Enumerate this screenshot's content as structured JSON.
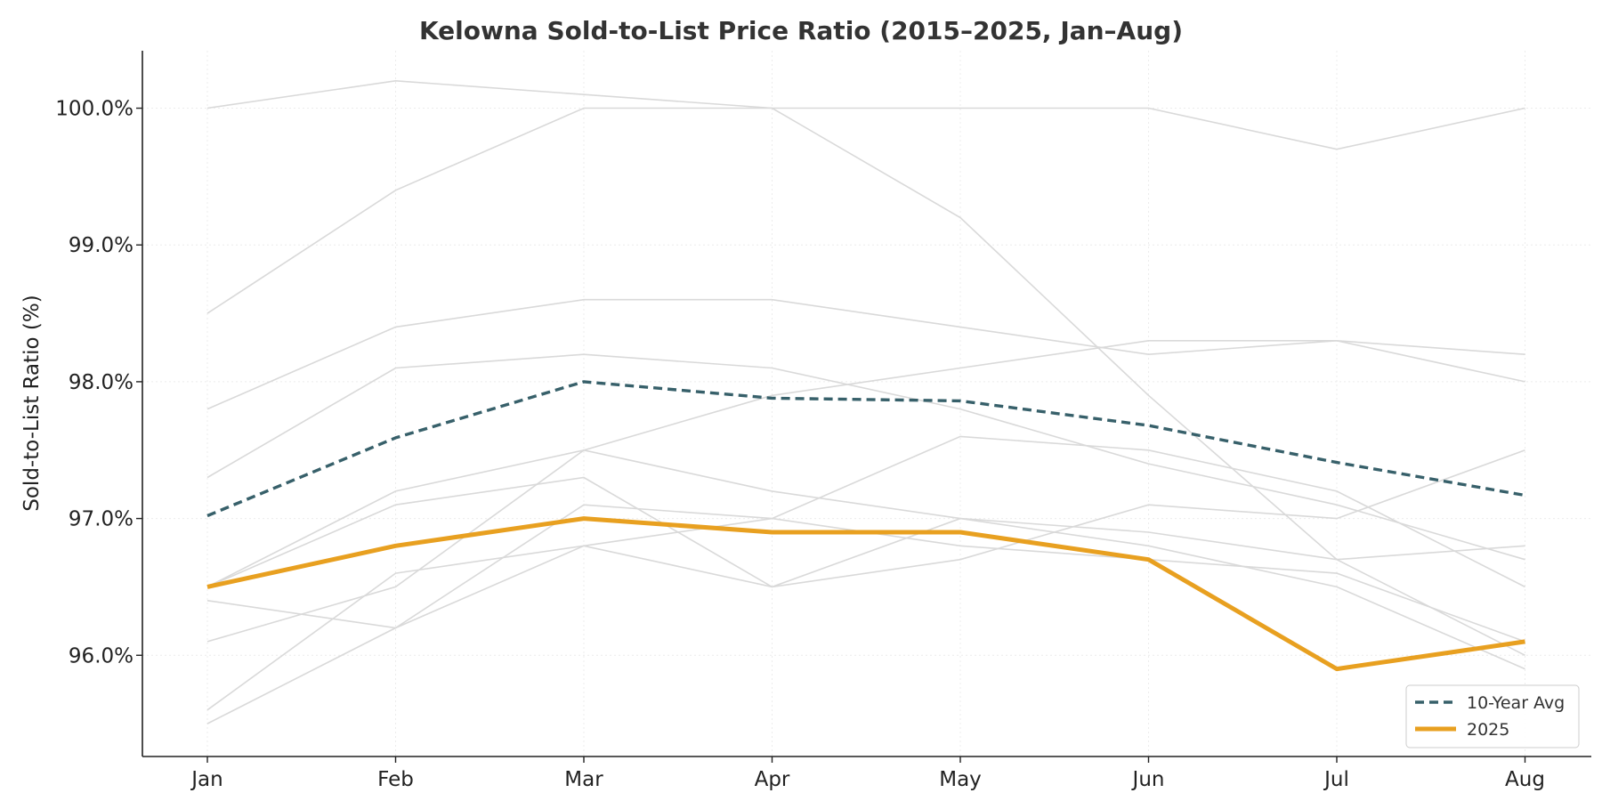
{
  "chart_data": {
    "type": "line",
    "title": "Kelowna Sold-to-List Price Ratio (2015–2025, Jan–Aug)",
    "xlabel": "",
    "ylabel": "Sold-to-List Ratio (%)",
    "categories": [
      "Jan",
      "Feb",
      "Mar",
      "Apr",
      "May",
      "Jun",
      "Jul",
      "Aug"
    ],
    "ylim": [
      95.26,
      100.42
    ],
    "yticks": [
      96.0,
      97.0,
      98.0,
      99.0,
      100.0
    ],
    "ytick_labels": [
      "96.0%",
      "97.0%",
      "98.0%",
      "99.0%",
      "100.0%"
    ],
    "grid": true,
    "legend_position": "bottom-right",
    "background_series": [
      {
        "values": [
          100.0,
          100.2,
          100.1,
          100.0,
          100.0,
          100.0,
          99.7,
          100.0
        ]
      },
      {
        "values": [
          98.5,
          99.4,
          100.0,
          100.0,
          99.2,
          97.9,
          96.7,
          96.0
        ]
      },
      {
        "values": [
          97.8,
          98.4,
          98.6,
          98.6,
          98.4,
          98.2,
          98.3,
          98.0
        ]
      },
      {
        "values": [
          97.3,
          98.1,
          98.2,
          98.1,
          97.8,
          97.4,
          97.1,
          96.7
        ]
      },
      {
        "values": [
          96.5,
          97.2,
          97.5,
          97.2,
          97.0,
          96.8,
          96.5,
          95.9
        ]
      },
      {
        "values": [
          96.5,
          97.1,
          97.3,
          96.5,
          96.7,
          97.1,
          97.0,
          97.5
        ]
      },
      {
        "values": [
          96.4,
          96.2,
          96.8,
          96.5,
          97.0,
          96.9,
          96.7,
          96.8
        ]
      },
      {
        "values": [
          96.1,
          96.5,
          97.5,
          97.9,
          98.1,
          98.3,
          98.3,
          98.2
        ]
      },
      {
        "values": [
          95.6,
          96.6,
          96.8,
          97.0,
          97.6,
          97.5,
          97.2,
          96.5
        ]
      },
      {
        "values": [
          95.5,
          96.2,
          97.1,
          97.0,
          96.8,
          96.7,
          96.6,
          96.1
        ]
      }
    ],
    "series": [
      {
        "name": "10-Year Avg",
        "values": [
          97.02,
          97.59,
          98.0,
          97.88,
          97.86,
          97.68,
          97.41,
          97.17
        ],
        "color": "#37606a",
        "style": "dashed"
      },
      {
        "name": "2025",
        "values": [
          96.5,
          96.8,
          97.0,
          96.9,
          96.9,
          96.7,
          95.9,
          96.1
        ],
        "color": "#e8a020",
        "style": "solid"
      }
    ],
    "background_color": "#d9d9d9"
  }
}
